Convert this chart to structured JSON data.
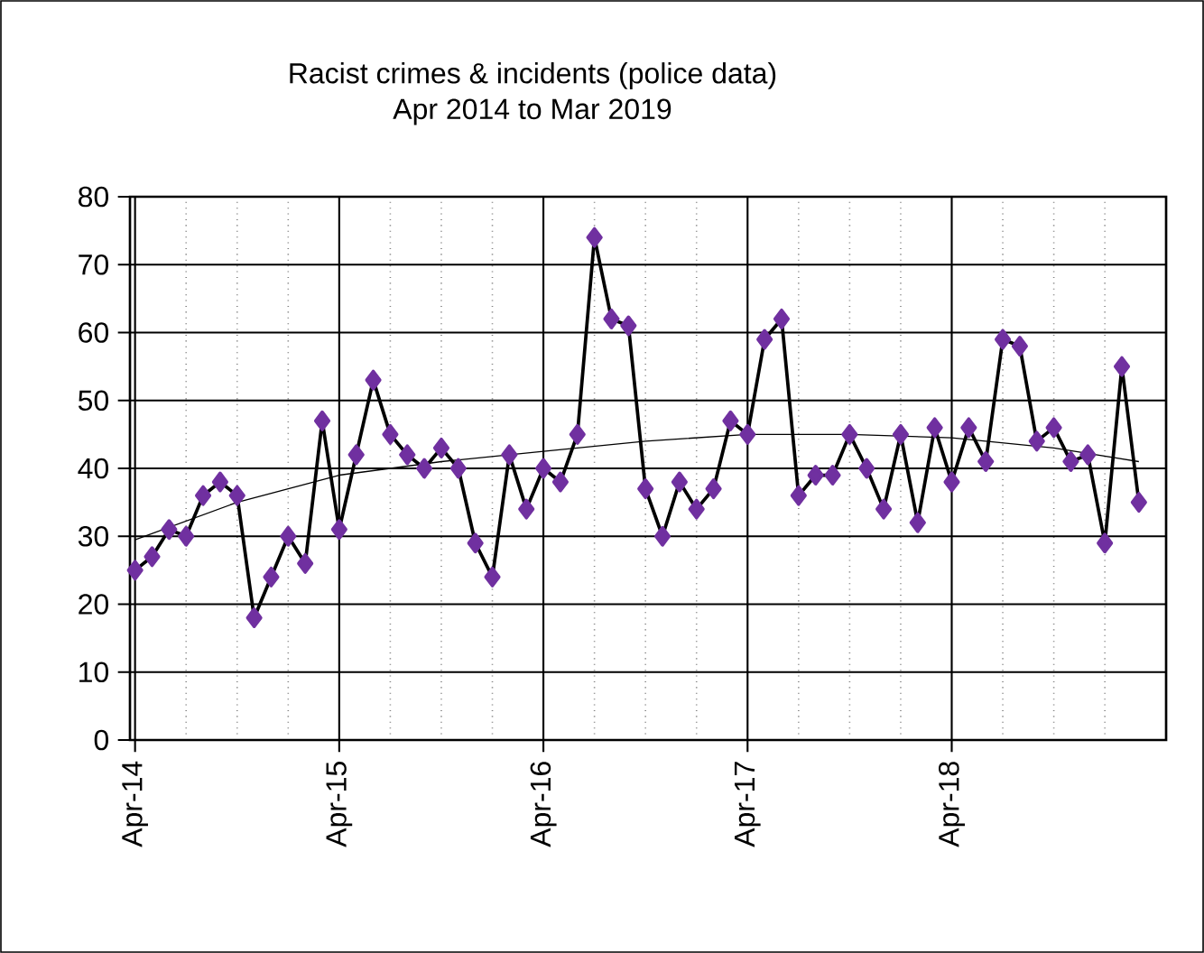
{
  "chart_data": {
    "type": "line",
    "title": "Racist crimes & incidents (police data)",
    "subtitle": "Apr 2014 to Mar 2019",
    "categories": [
      "Apr-14",
      null,
      null,
      null,
      null,
      null,
      null,
      null,
      null,
      null,
      null,
      null,
      "Apr-15",
      null,
      null,
      null,
      null,
      null,
      null,
      null,
      null,
      null,
      null,
      null,
      "Apr-16",
      null,
      null,
      null,
      null,
      null,
      null,
      null,
      null,
      null,
      null,
      null,
      "Apr-17",
      null,
      null,
      null,
      null,
      null,
      null,
      null,
      null,
      null,
      null,
      null,
      "Apr-18",
      null,
      null,
      null,
      null,
      null,
      null,
      null,
      null,
      null,
      null,
      null
    ],
    "series": [
      {
        "color": "#7030a0",
        "marker": "diamond",
        "values": [
          25,
          27,
          31,
          30,
          36,
          38,
          36,
          18,
          24,
          30,
          26,
          47,
          31,
          42,
          53,
          45,
          42,
          40,
          43,
          40,
          29,
          24,
          42,
          34,
          40,
          38,
          45,
          74,
          62,
          61,
          37,
          30,
          38,
          34,
          37,
          47,
          45,
          59,
          62,
          36,
          39,
          39,
          45,
          40,
          34,
          45,
          32,
          46,
          38,
          46,
          41,
          59,
          58,
          44,
          46,
          41,
          42,
          29,
          55,
          35
        ]
      },
      {
        "type": "line",
        "color": "#000000",
        "marker": "none",
        "values": [
          29.5,
          null,
          null,
          null,
          null,
          null,
          35,
          null,
          null,
          null,
          null,
          null,
          39,
          null,
          null,
          null,
          null,
          null,
          41,
          null,
          null,
          null,
          null,
          null,
          42.5,
          null,
          null,
          null,
          null,
          null,
          44,
          null,
          null,
          null,
          null,
          null,
          45,
          null,
          null,
          null,
          null,
          null,
          45,
          null,
          null,
          null,
          null,
          null,
          44.5,
          null,
          null,
          null,
          null,
          null,
          43,
          null,
          null,
          null,
          null,
          41
        ]
      }
    ],
    "ylim": [
      0,
      80
    ],
    "yticks": [
      0,
      10,
      20,
      30,
      40,
      50,
      60,
      70,
      80
    ],
    "grid": true
  }
}
